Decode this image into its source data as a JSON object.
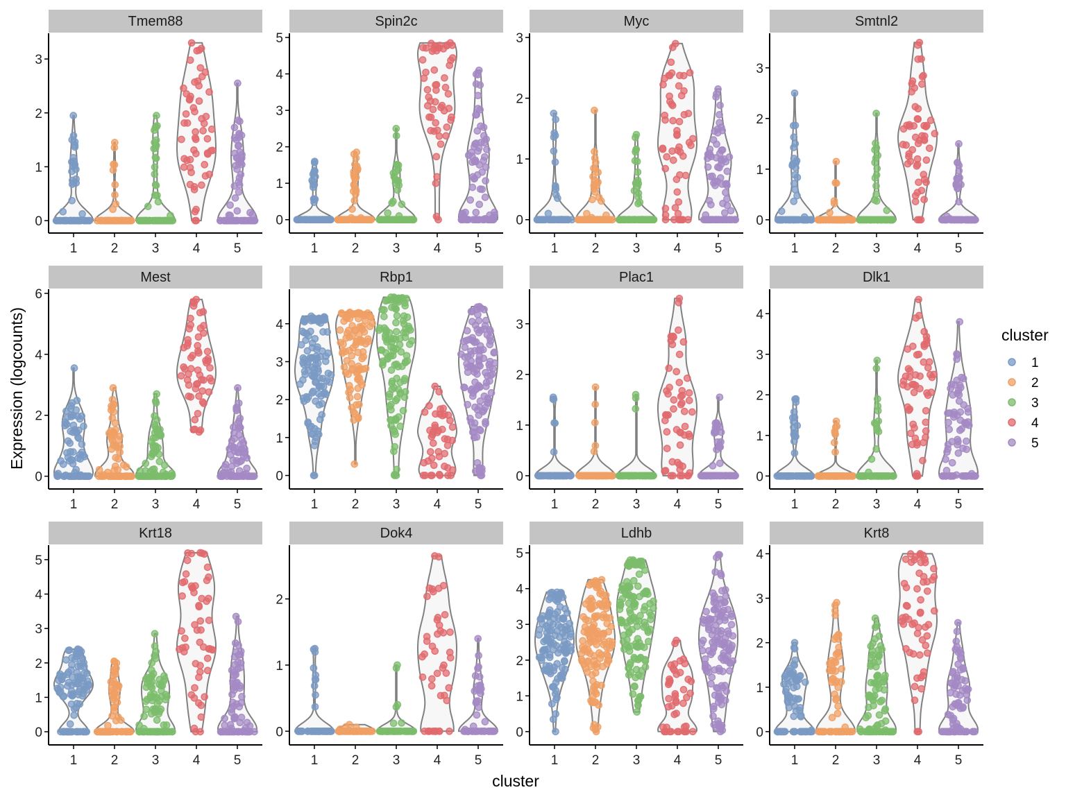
{
  "chart_data": {
    "type": "violin",
    "xlabel": "cluster",
    "ylabel": "Expression (logcounts)",
    "legend": {
      "title": "cluster",
      "placement": "right",
      "entries": [
        {
          "label": "1",
          "color": "#7a9ac4"
        },
        {
          "label": "2",
          "color": "#f0a064"
        },
        {
          "label": "3",
          "color": "#7cbc6c"
        },
        {
          "label": "4",
          "color": "#e06a6e"
        },
        {
          "label": "5",
          "color": "#a489c4"
        }
      ]
    },
    "categories": [
      "1",
      "2",
      "3",
      "4",
      "5"
    ],
    "panels": [
      {
        "gene": "Tmem88",
        "ylim": [
          -0.05,
          3.4
        ],
        "yticks": [
          0,
          1,
          2,
          3
        ],
        "series": [
          {
            "cluster": "1",
            "max": 1.95,
            "n_points": 70,
            "frac_zero": 0.7,
            "pos_center": 0.9
          },
          {
            "cluster": "2",
            "max": 1.45,
            "n_points": 70,
            "frac_zero": 0.88,
            "pos_center": 0.8
          },
          {
            "cluster": "3",
            "max": 1.95,
            "n_points": 70,
            "frac_zero": 0.72,
            "pos_center": 1.0
          },
          {
            "cluster": "4",
            "max": 3.3,
            "n_points": 55,
            "frac_zero": 0.04,
            "pos_center": 1.6
          },
          {
            "cluster": "5",
            "max": 2.55,
            "n_points": 80,
            "frac_zero": 0.55,
            "pos_center": 0.9
          }
        ]
      },
      {
        "gene": "Spin2c",
        "ylim": [
          -0.1,
          5.0
        ],
        "yticks": [
          0,
          1,
          2,
          3,
          4,
          5
        ],
        "series": [
          {
            "cluster": "1",
            "max": 1.6,
            "n_points": 60,
            "frac_zero": 0.75,
            "pos_center": 0.9
          },
          {
            "cluster": "2",
            "max": 1.85,
            "n_points": 70,
            "frac_zero": 0.7,
            "pos_center": 1.0
          },
          {
            "cluster": "3",
            "max": 2.5,
            "n_points": 65,
            "frac_zero": 0.7,
            "pos_center": 1.0
          },
          {
            "cluster": "4",
            "max": 4.85,
            "n_points": 55,
            "frac_zero": 0.02,
            "pos_center": 3.6
          },
          {
            "cluster": "5",
            "max": 4.1,
            "n_points": 80,
            "frac_zero": 0.3,
            "pos_center": 1.6
          }
        ]
      },
      {
        "gene": "Myc",
        "ylim": [
          -0.06,
          3.0
        ],
        "yticks": [
          0,
          1,
          2,
          3
        ],
        "series": [
          {
            "cluster": "1",
            "max": 1.75,
            "n_points": 60,
            "frac_zero": 0.8,
            "pos_center": 0.9
          },
          {
            "cluster": "2",
            "max": 1.8,
            "n_points": 70,
            "frac_zero": 0.72,
            "pos_center": 0.6
          },
          {
            "cluster": "3",
            "max": 1.4,
            "n_points": 70,
            "frac_zero": 0.75,
            "pos_center": 0.6
          },
          {
            "cluster": "4",
            "max": 2.9,
            "n_points": 55,
            "frac_zero": 0.12,
            "pos_center": 1.3
          },
          {
            "cluster": "5",
            "max": 2.15,
            "n_points": 80,
            "frac_zero": 0.35,
            "pos_center": 0.9
          }
        ]
      },
      {
        "gene": "Smtnl2",
        "ylim": [
          -0.07,
          3.6
        ],
        "yticks": [
          0,
          1,
          2,
          3
        ],
        "series": [
          {
            "cluster": "1",
            "max": 2.5,
            "n_points": 65,
            "frac_zero": 0.7,
            "pos_center": 1.0
          },
          {
            "cluster": "2",
            "max": 1.15,
            "n_points": 65,
            "frac_zero": 0.9,
            "pos_center": 0.4
          },
          {
            "cluster": "3",
            "max": 2.1,
            "n_points": 65,
            "frac_zero": 0.78,
            "pos_center": 0.8
          },
          {
            "cluster": "4",
            "max": 3.5,
            "n_points": 55,
            "frac_zero": 0.05,
            "pos_center": 1.4
          },
          {
            "cluster": "5",
            "max": 1.5,
            "n_points": 65,
            "frac_zero": 0.75,
            "pos_center": 0.7
          }
        ]
      },
      {
        "gene": "Mest",
        "ylim": [
          -0.1,
          6.0
        ],
        "yticks": [
          0,
          2,
          4,
          6
        ],
        "series": [
          {
            "cluster": "1",
            "max": 3.55,
            "n_points": 75,
            "frac_zero": 0.3,
            "pos_center": 1.3
          },
          {
            "cluster": "2",
            "max": 2.9,
            "n_points": 70,
            "frac_zero": 0.45,
            "pos_center": 1.0
          },
          {
            "cluster": "3",
            "max": 2.7,
            "n_points": 70,
            "frac_zero": 0.4,
            "pos_center": 1.0
          },
          {
            "cluster": "4",
            "min": 1.45,
            "max": 5.8,
            "n_points": 55,
            "frac_zero": 0.0,
            "pos_center": 3.5
          },
          {
            "cluster": "5",
            "max": 2.9,
            "n_points": 80,
            "frac_zero": 0.35,
            "pos_center": 1.0
          }
        ]
      },
      {
        "gene": "Rbp1",
        "ylim": [
          -0.1,
          4.8
        ],
        "yticks": [
          0,
          1,
          2,
          3,
          4
        ],
        "series": [
          {
            "cluster": "1",
            "max": 4.2,
            "n_points": 110,
            "frac_zero": 0.02,
            "pos_center": 2.9
          },
          {
            "cluster": "2",
            "min": 0.3,
            "max": 4.3,
            "n_points": 100,
            "frac_zero": 0.0,
            "pos_center": 3.4
          },
          {
            "cluster": "3",
            "max": 4.7,
            "n_points": 120,
            "frac_zero": 0.02,
            "pos_center": 3.1
          },
          {
            "cluster": "4",
            "max": 2.35,
            "n_points": 45,
            "frac_zero": 0.15,
            "pos_center": 1.2
          },
          {
            "cluster": "5",
            "max": 4.45,
            "n_points": 120,
            "frac_zero": 0.02,
            "pos_center": 2.6
          }
        ]
      },
      {
        "gene": "Plac1",
        "ylim": [
          -0.07,
          3.6
        ],
        "yticks": [
          0,
          1,
          2,
          3
        ],
        "series": [
          {
            "cluster": "1",
            "max": 1.55,
            "n_points": 60,
            "frac_zero": 0.92,
            "pos_center": 0.6
          },
          {
            "cluster": "2",
            "max": 1.75,
            "n_points": 60,
            "frac_zero": 0.94,
            "pos_center": 0.9
          },
          {
            "cluster": "3",
            "max": 1.6,
            "n_points": 60,
            "frac_zero": 0.96,
            "pos_center": 1.3
          },
          {
            "cluster": "4",
            "max": 3.5,
            "n_points": 55,
            "frac_zero": 0.1,
            "pos_center": 1.3
          },
          {
            "cluster": "5",
            "max": 1.55,
            "n_points": 60,
            "frac_zero": 0.7,
            "pos_center": 0.8
          }
        ]
      },
      {
        "gene": "Dlk1",
        "ylim": [
          -0.08,
          4.5
        ],
        "yticks": [
          0,
          1,
          2,
          3,
          4
        ],
        "series": [
          {
            "cluster": "1",
            "max": 1.9,
            "n_points": 60,
            "frac_zero": 0.75,
            "pos_center": 1.2
          },
          {
            "cluster": "2",
            "max": 1.35,
            "n_points": 60,
            "frac_zero": 0.88,
            "pos_center": 0.9
          },
          {
            "cluster": "3",
            "max": 2.85,
            "n_points": 60,
            "frac_zero": 0.78,
            "pos_center": 1.3
          },
          {
            "cluster": "4",
            "max": 4.35,
            "n_points": 55,
            "frac_zero": 0.05,
            "pos_center": 2.4
          },
          {
            "cluster": "5",
            "max": 3.8,
            "n_points": 80,
            "frac_zero": 0.35,
            "pos_center": 1.4
          }
        ]
      },
      {
        "gene": "Krt18",
        "ylim": [
          -0.1,
          5.3
        ],
        "yticks": [
          0,
          1,
          2,
          3,
          4,
          5
        ],
        "series": [
          {
            "cluster": "1",
            "max": 2.4,
            "n_points": 100,
            "frac_zero": 0.25,
            "pos_center": 1.3
          },
          {
            "cluster": "2",
            "max": 2.05,
            "n_points": 70,
            "frac_zero": 0.55,
            "pos_center": 1.2
          },
          {
            "cluster": "3",
            "max": 2.85,
            "n_points": 90,
            "frac_zero": 0.35,
            "pos_center": 1.0
          },
          {
            "cluster": "4",
            "max": 5.2,
            "n_points": 55,
            "frac_zero": 0.03,
            "pos_center": 2.9
          },
          {
            "cluster": "5",
            "max": 3.35,
            "n_points": 80,
            "frac_zero": 0.4,
            "pos_center": 1.1
          }
        ]
      },
      {
        "gene": "Dok4",
        "ylim": [
          -0.06,
          2.75
        ],
        "yticks": [
          0,
          1,
          2
        ],
        "series": [
          {
            "cluster": "1",
            "max": 1.25,
            "n_points": 60,
            "frac_zero": 0.85,
            "pos_center": 0.9
          },
          {
            "cluster": "2",
            "max": 0.1,
            "n_points": 60,
            "frac_zero": 0.95,
            "pos_center": 0.05
          },
          {
            "cluster": "3",
            "max": 1.0,
            "n_points": 60,
            "frac_zero": 0.92,
            "pos_center": 0.3
          },
          {
            "cluster": "4",
            "max": 2.65,
            "n_points": 45,
            "frac_zero": 0.25,
            "pos_center": 1.4
          },
          {
            "cluster": "5",
            "max": 1.4,
            "n_points": 60,
            "frac_zero": 0.65,
            "pos_center": 0.6
          }
        ]
      },
      {
        "gene": "Ldhb",
        "ylim": [
          -0.1,
          5.1
        ],
        "yticks": [
          0,
          1,
          2,
          3,
          4,
          5
        ],
        "series": [
          {
            "cluster": "1",
            "max": 3.9,
            "n_points": 130,
            "frac_zero": 0.01,
            "pos_center": 2.6
          },
          {
            "cluster": "2",
            "max": 4.25,
            "n_points": 130,
            "frac_zero": 0.01,
            "pos_center": 2.7
          },
          {
            "cluster": "3",
            "min": 0.55,
            "max": 4.8,
            "n_points": 130,
            "frac_zero": 0.0,
            "pos_center": 3.0
          },
          {
            "cluster": "4",
            "max": 2.55,
            "n_points": 45,
            "frac_zero": 0.25,
            "pos_center": 1.0
          },
          {
            "cluster": "5",
            "max": 4.95,
            "n_points": 130,
            "frac_zero": 0.01,
            "pos_center": 2.3
          }
        ]
      },
      {
        "gene": "Krt8",
        "ylim": [
          -0.08,
          4.1
        ],
        "yticks": [
          0,
          1,
          2,
          3,
          4
        ],
        "series": [
          {
            "cluster": "1",
            "max": 2.0,
            "n_points": 80,
            "frac_zero": 0.4,
            "pos_center": 0.9
          },
          {
            "cluster": "2",
            "max": 2.9,
            "n_points": 75,
            "frac_zero": 0.5,
            "pos_center": 1.3
          },
          {
            "cluster": "3",
            "max": 2.55,
            "n_points": 90,
            "frac_zero": 0.3,
            "pos_center": 1.0
          },
          {
            "cluster": "4",
            "max": 4.0,
            "n_points": 55,
            "frac_zero": 0.03,
            "pos_center": 2.9
          },
          {
            "cluster": "5",
            "max": 2.45,
            "n_points": 85,
            "frac_zero": 0.35,
            "pos_center": 1.0
          }
        ]
      }
    ]
  }
}
